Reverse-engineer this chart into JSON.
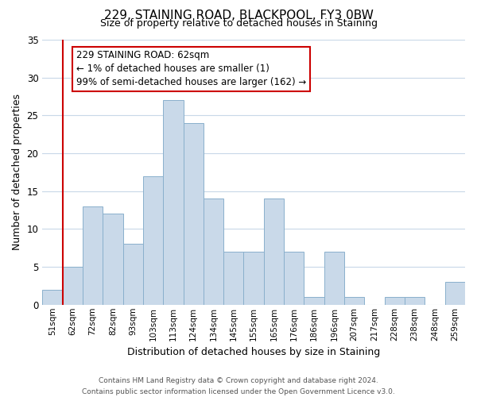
{
  "title": "229, STAINING ROAD, BLACKPOOL, FY3 0BW",
  "subtitle": "Size of property relative to detached houses in Staining",
  "xlabel": "Distribution of detached houses by size in Staining",
  "ylabel": "Number of detached properties",
  "bin_labels": [
    "51sqm",
    "62sqm",
    "72sqm",
    "82sqm",
    "93sqm",
    "103sqm",
    "113sqm",
    "124sqm",
    "134sqm",
    "145sqm",
    "155sqm",
    "165sqm",
    "176sqm",
    "186sqm",
    "196sqm",
    "207sqm",
    "217sqm",
    "228sqm",
    "238sqm",
    "248sqm",
    "259sqm"
  ],
  "bar_values": [
    2,
    5,
    13,
    12,
    8,
    17,
    27,
    24,
    14,
    7,
    7,
    14,
    7,
    1,
    7,
    1,
    0,
    1,
    1,
    0,
    3
  ],
  "bar_color": "#c9d9e9",
  "bar_edge_color": "#8ab0cc",
  "marker_x_label": "62sqm",
  "marker_line_color": "#cc0000",
  "ylim": [
    0,
    35
  ],
  "yticks": [
    0,
    5,
    10,
    15,
    20,
    25,
    30,
    35
  ],
  "annotation_line1": "229 STAINING ROAD: 62sqm",
  "annotation_line2": "← 1% of detached houses are smaller (1)",
  "annotation_line3": "99% of semi-detached houses are larger (162) →",
  "annotation_box_edge_color": "#cc0000",
  "footer_line1": "Contains HM Land Registry data © Crown copyright and database right 2024.",
  "footer_line2": "Contains public sector information licensed under the Open Government Licence v3.0.",
  "background_color": "#ffffff",
  "grid_color": "#c8d8e8"
}
